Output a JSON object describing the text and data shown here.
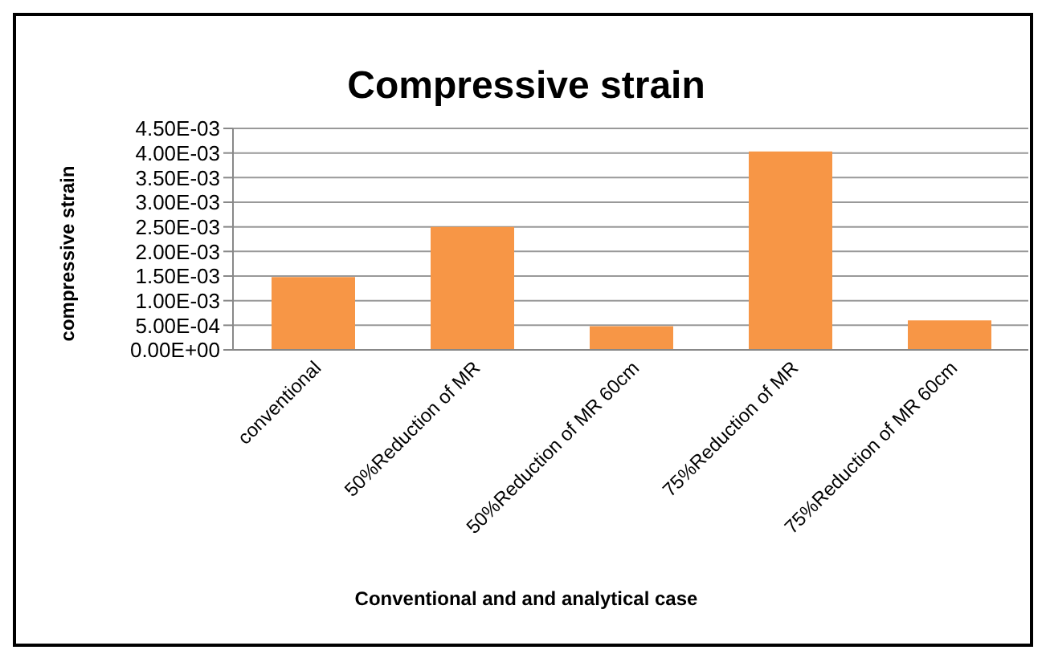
{
  "chart_data": {
    "type": "bar",
    "title": "Compressive strain",
    "xlabel": "Conventional and and analytical case",
    "ylabel": "compressive strain",
    "categories": [
      "conventional",
      "50%Reduction of MR",
      "50%Reduction of MR 60cm",
      "75%Reduction of MR",
      "75%Reduction of MR 60cm"
    ],
    "values": [
      0.00148,
      0.0025,
      0.00048,
      0.00403,
      0.0006
    ],
    "color": "#f79646",
    "ylim": [
      0,
      0.0045
    ],
    "yticks": [
      {
        "value": 0,
        "label": "0.00E+00"
      },
      {
        "value": 0.0005,
        "label": "5.00E-04"
      },
      {
        "value": 0.001,
        "label": "1.00E-03"
      },
      {
        "value": 0.0015,
        "label": "1.50E-03"
      },
      {
        "value": 0.002,
        "label": "2.00E-03"
      },
      {
        "value": 0.0025,
        "label": "2.50E-03"
      },
      {
        "value": 0.003,
        "label": "3.00E-03"
      },
      {
        "value": 0.0035,
        "label": "3.50E-03"
      },
      {
        "value": 0.004,
        "label": "4.00E-03"
      },
      {
        "value": 0.0045,
        "label": "4.50E-03"
      }
    ],
    "grid": "y",
    "legend": false
  }
}
